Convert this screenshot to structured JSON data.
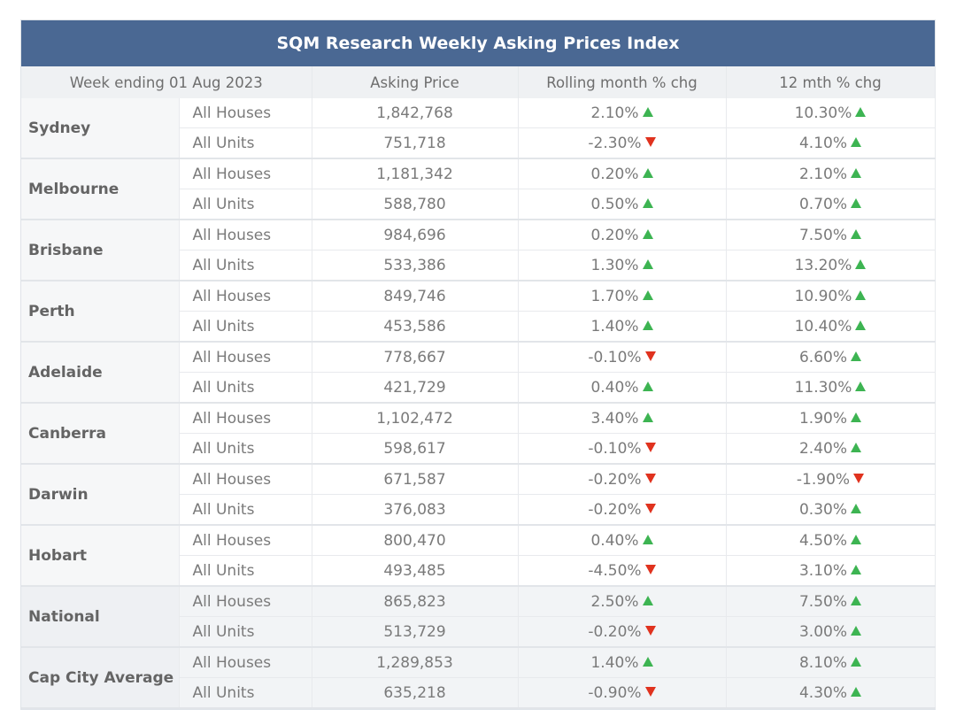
{
  "title": "SQM Research Weekly Asking Prices Index",
  "chart_data": {
    "type": "table",
    "title": "SQM Research Weekly Asking Prices Index",
    "columns": [
      "Week ending 01 Aug 2023",
      "Asking Price",
      "Rolling month % chg",
      "12 mth % chg"
    ],
    "colors": {
      "header_bg": "#4a6893",
      "up": "#3db452",
      "down": "#e0321e"
    },
    "groups": [
      {
        "city": "Sydney",
        "summary": false,
        "rows": [
          {
            "type": "All Houses",
            "price": "1,842,768",
            "month": "2.10%",
            "month_dir": "up",
            "year": "10.30%",
            "year_dir": "up"
          },
          {
            "type": "All Units",
            "price": "751,718",
            "month": "-2.30%",
            "month_dir": "down",
            "year": "4.10%",
            "year_dir": "up"
          }
        ]
      },
      {
        "city": "Melbourne",
        "summary": false,
        "rows": [
          {
            "type": "All Houses",
            "price": "1,181,342",
            "month": "0.20%",
            "month_dir": "up",
            "year": "2.10%",
            "year_dir": "up"
          },
          {
            "type": "All Units",
            "price": "588,780",
            "month": "0.50%",
            "month_dir": "up",
            "year": "0.70%",
            "year_dir": "up"
          }
        ]
      },
      {
        "city": "Brisbane",
        "summary": false,
        "rows": [
          {
            "type": "All Houses",
            "price": "984,696",
            "month": "0.20%",
            "month_dir": "up",
            "year": "7.50%",
            "year_dir": "up"
          },
          {
            "type": "All Units",
            "price": "533,386",
            "month": "1.30%",
            "month_dir": "up",
            "year": "13.20%",
            "year_dir": "up"
          }
        ]
      },
      {
        "city": "Perth",
        "summary": false,
        "rows": [
          {
            "type": "All Houses",
            "price": "849,746",
            "month": "1.70%",
            "month_dir": "up",
            "year": "10.90%",
            "year_dir": "up"
          },
          {
            "type": "All Units",
            "price": "453,586",
            "month": "1.40%",
            "month_dir": "up",
            "year": "10.40%",
            "year_dir": "up"
          }
        ]
      },
      {
        "city": "Adelaide",
        "summary": false,
        "rows": [
          {
            "type": "All Houses",
            "price": "778,667",
            "month": "-0.10%",
            "month_dir": "down",
            "year": "6.60%",
            "year_dir": "up"
          },
          {
            "type": "All Units",
            "price": "421,729",
            "month": "0.40%",
            "month_dir": "up",
            "year": "11.30%",
            "year_dir": "up"
          }
        ]
      },
      {
        "city": "Canberra",
        "summary": false,
        "rows": [
          {
            "type": "All Houses",
            "price": "1,102,472",
            "month": "3.40%",
            "month_dir": "up",
            "year": "1.90%",
            "year_dir": "up"
          },
          {
            "type": "All Units",
            "price": "598,617",
            "month": "-0.10%",
            "month_dir": "down",
            "year": "2.40%",
            "year_dir": "up"
          }
        ]
      },
      {
        "city": "Darwin",
        "summary": false,
        "rows": [
          {
            "type": "All Houses",
            "price": "671,587",
            "month": "-0.20%",
            "month_dir": "down",
            "year": "-1.90%",
            "year_dir": "down"
          },
          {
            "type": "All Units",
            "price": "376,083",
            "month": "-0.20%",
            "month_dir": "down",
            "year": "0.30%",
            "year_dir": "up"
          }
        ]
      },
      {
        "city": "Hobart",
        "summary": false,
        "rows": [
          {
            "type": "All Houses",
            "price": "800,470",
            "month": "0.40%",
            "month_dir": "up",
            "year": "4.50%",
            "year_dir": "up"
          },
          {
            "type": "All Units",
            "price": "493,485",
            "month": "-4.50%",
            "month_dir": "down",
            "year": "3.10%",
            "year_dir": "up"
          }
        ]
      },
      {
        "city": "National",
        "summary": true,
        "rows": [
          {
            "type": "All Houses",
            "price": "865,823",
            "month": "2.50%",
            "month_dir": "up",
            "year": "7.50%",
            "year_dir": "up"
          },
          {
            "type": "All Units",
            "price": "513,729",
            "month": "-0.20%",
            "month_dir": "down",
            "year": "3.00%",
            "year_dir": "up"
          }
        ]
      },
      {
        "city": "Cap City Average",
        "summary": true,
        "rows": [
          {
            "type": "All Houses",
            "price": "1,289,853",
            "month": "1.40%",
            "month_dir": "up",
            "year": "8.10%",
            "year_dir": "up"
          },
          {
            "type": "All Units",
            "price": "635,218",
            "month": "-0.90%",
            "month_dir": "down",
            "year": "4.30%",
            "year_dir": "up"
          }
        ]
      }
    ]
  }
}
